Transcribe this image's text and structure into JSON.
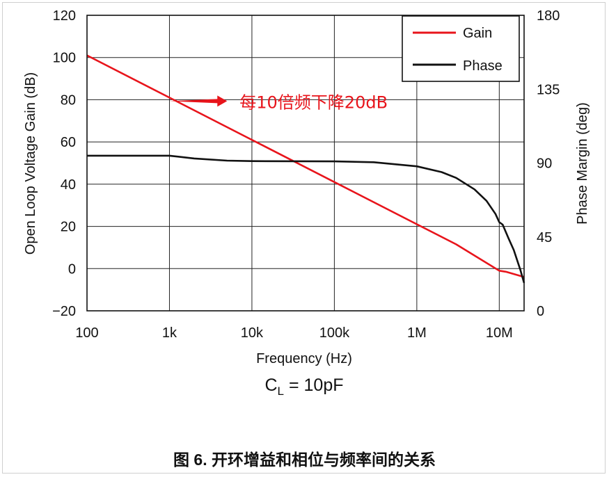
{
  "chart_data": {
    "type": "line",
    "xlabel": "Frequency (Hz)",
    "ylabel": "Open Loop Voltage Gain (dB)",
    "y2label": "Phase Margin (deg)",
    "x_scale": "log",
    "xlim": [
      100,
      20000000
    ],
    "ylim": [
      -20,
      120
    ],
    "y2lim": [
      0,
      180
    ],
    "x_ticks": [
      100,
      1000,
      10000,
      100000,
      1000000,
      10000000
    ],
    "x_tick_labels": [
      "100",
      "1k",
      "10k",
      "100k",
      "1M",
      "10M"
    ],
    "y_ticks": [
      120,
      100,
      80,
      60,
      40,
      20,
      0,
      -20
    ],
    "y_tick_labels": [
      "120",
      "100",
      "80",
      "60",
      "40",
      "20",
      "0",
      "−20"
    ],
    "y2_ticks": [
      180,
      135,
      90,
      45,
      0
    ],
    "y2_tick_labels": [
      "180",
      "135",
      "90",
      "45",
      "0"
    ],
    "grid": true,
    "legend_position": "top-right",
    "series": [
      {
        "name": "Gain",
        "axis": "left",
        "color": "#e8141b",
        "x": [
          100,
          1000,
          10000,
          100000,
          1000000,
          3000000,
          10000000,
          12000000,
          20000000
        ],
        "y": [
          101,
          81,
          61,
          41,
          21,
          11.5,
          -1,
          -1.5,
          -4
        ]
      },
      {
        "name": "Phase",
        "axis": "right",
        "color": "#111111",
        "x": [
          100,
          1000,
          2000,
          5000,
          10000,
          100000,
          300000,
          1000000,
          2000000,
          3000000,
          5000000,
          7000000,
          9000000,
          10000000,
          11000000,
          13000000,
          15000000,
          18000000,
          20000000
        ],
        "y": [
          94.5,
          94.5,
          92.8,
          91.5,
          91.2,
          91,
          90.5,
          88,
          84.5,
          81,
          74,
          67,
          59,
          54,
          52.5,
          44,
          37,
          25,
          17
        ]
      }
    ],
    "annotations": [
      {
        "text": "每10倍频下降20dB",
        "color": "#e8141b",
        "arrow_from_x": 1000,
        "arrow_to_x": 5000,
        "y": 80
      }
    ],
    "subtitle": {
      "main": "C",
      "subscript": "L",
      "rest": " = 10pF"
    }
  },
  "caption": "图 6. 开环增益和相位与频率间的关系"
}
